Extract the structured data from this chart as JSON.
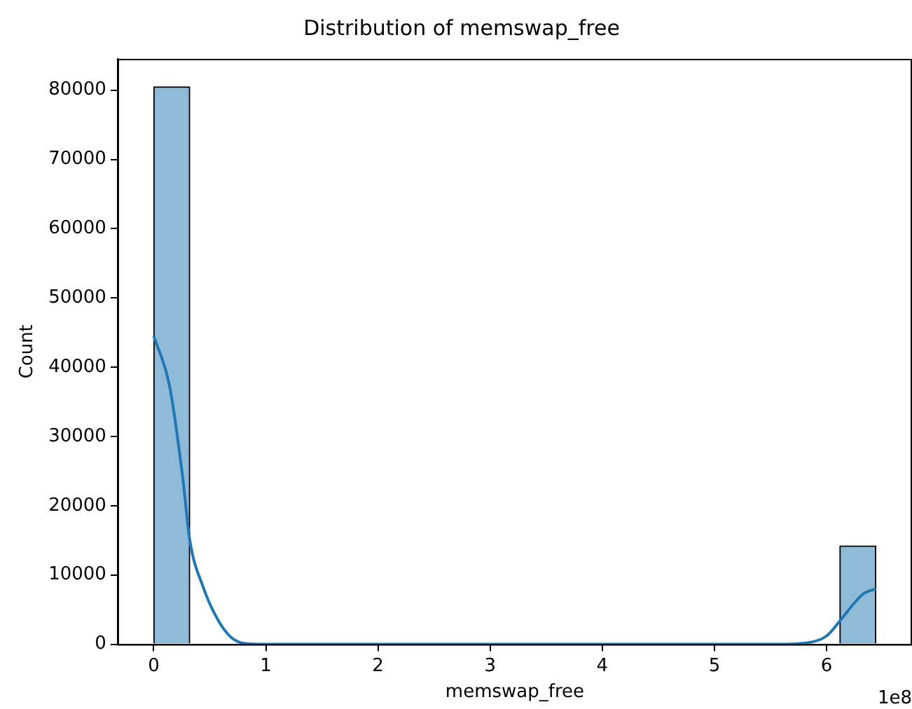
{
  "chart_data": {
    "type": "histogram",
    "title": "Distribution of memswap_free",
    "xlabel": "memswap_free",
    "ylabel": "Count",
    "bins": [
      0,
      0.322,
      0.644,
      0.966,
      1.288,
      1.61,
      1.932,
      2.254,
      2.576,
      2.898,
      3.22,
      3.542,
      3.864,
      4.186,
      4.508,
      4.83,
      5.152,
      5.474,
      5.796,
      6.118,
      6.44
    ],
    "values": [
      80500,
      0,
      0,
      0,
      0,
      0,
      0,
      0,
      0,
      0,
      0,
      0,
      0,
      0,
      0,
      0,
      0,
      0,
      0,
      14200
    ],
    "color": "#8fbbd9",
    "series": [
      {
        "type": "line",
        "color": "#1f77b4",
        "x": [
          0,
          0.14,
          0.26,
          0.32,
          0.44,
          0.57,
          0.69,
          0.82,
          1.0,
          5.5,
          5.82,
          6.0,
          6.13,
          6.25,
          6.33,
          6.44
        ],
        "values": [
          44500,
          37400,
          23900,
          15200,
          8300,
          3600,
          1000,
          100,
          0,
          0,
          200,
          1200,
          3600,
          6000,
          7300,
          8000
        ]
      }
    ],
    "xlim": [
      -0.322,
      6.762
    ],
    "xticks": [
      0,
      1,
      2,
      3,
      4,
      5,
      6
    ],
    "ylim": [
      0,
      84525
    ],
    "yticks": [
      0,
      10000,
      20000,
      30000,
      40000,
      50000,
      60000,
      70000,
      80000
    ],
    "annotations": [
      "1e8"
    ],
    "grid": false,
    "legend": false,
    "marker": "none"
  }
}
